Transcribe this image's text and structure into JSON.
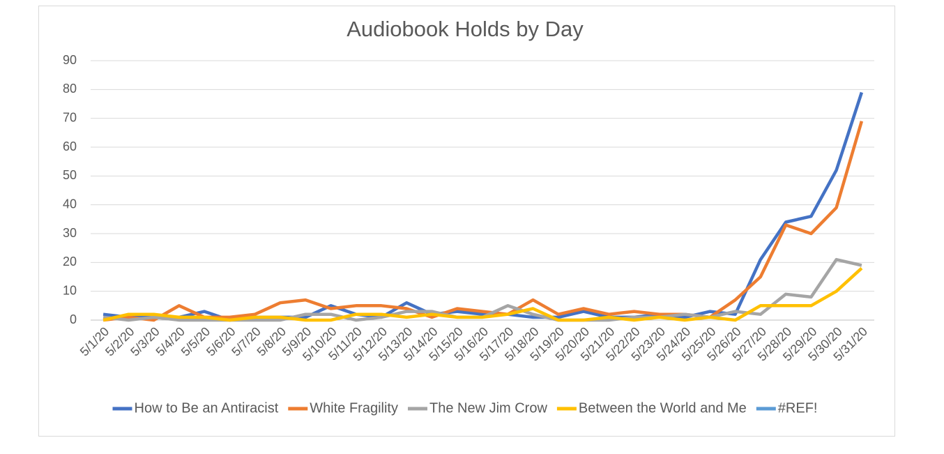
{
  "chart_data": {
    "type": "line",
    "title": "Audiobook Holds by Day",
    "categories": [
      "5/1/20",
      "5/2/20",
      "5/3/20",
      "5/4/20",
      "5/5/20",
      "5/6/20",
      "5/7/20",
      "5/8/20",
      "5/9/20",
      "5/10/20",
      "5/11/20",
      "5/12/20",
      "5/13/20",
      "5/14/20",
      "5/15/20",
      "5/16/20",
      "5/17/20",
      "5/18/20",
      "5/19/20",
      "5/20/20",
      "5/21/20",
      "5/22/20",
      "5/23/20",
      "5/24/20",
      "5/25/20",
      "5/26/20",
      "5/27/20",
      "5/28/20",
      "5/29/20",
      "5/30/20",
      "5/31/20"
    ],
    "series": [
      {
        "name": "How to Be an Antiracist",
        "color": "#4472c4",
        "values": [
          2,
          1,
          1,
          1,
          3,
          0,
          1,
          1,
          1,
          5,
          2,
          1,
          6,
          2,
          3,
          2,
          2,
          1,
          1,
          3,
          1,
          1,
          2,
          1,
          3,
          2,
          21,
          34,
          36,
          52,
          79
        ]
      },
      {
        "name": "White Fragility",
        "color": "#ed7d31",
        "values": [
          0,
          1,
          0,
          5,
          1,
          1,
          2,
          6,
          7,
          4,
          5,
          5,
          4,
          1,
          4,
          3,
          2,
          7,
          2,
          4,
          2,
          3,
          2,
          2,
          1,
          7,
          15,
          33,
          30,
          39,
          69
        ]
      },
      {
        "name": "The New Jim Crow",
        "color": "#a5a5a5",
        "values": [
          1,
          0,
          1,
          0,
          0,
          0,
          0,
          0,
          2,
          2,
          0,
          1,
          3,
          3,
          1,
          1,
          5,
          2,
          0,
          0,
          0,
          1,
          1,
          2,
          1,
          3,
          2,
          9,
          8,
          21,
          19
        ]
      },
      {
        "name": "Between the World and Me",
        "color": "#ffc000",
        "values": [
          0,
          2,
          2,
          1,
          1,
          0,
          1,
          1,
          0,
          0,
          2,
          2,
          1,
          2,
          1,
          1,
          2,
          4,
          0,
          0,
          1,
          0,
          1,
          0,
          1,
          0,
          5,
          5,
          5,
          10,
          18
        ]
      },
      {
        "name": "#REF!",
        "color": "#5b9bd5",
        "values": [
          null,
          null,
          null,
          null,
          null,
          null,
          null,
          null,
          null,
          null,
          null,
          null,
          null,
          null,
          null,
          null,
          null,
          null,
          null,
          null,
          null,
          null,
          null,
          null,
          null,
          null,
          null,
          null,
          null,
          null,
          null
        ]
      }
    ],
    "ylim": [
      0,
      90
    ],
    "yticks": [
      0,
      10,
      20,
      30,
      40,
      50,
      60,
      70,
      80,
      90
    ],
    "grid": true,
    "legend": "bottom"
  }
}
